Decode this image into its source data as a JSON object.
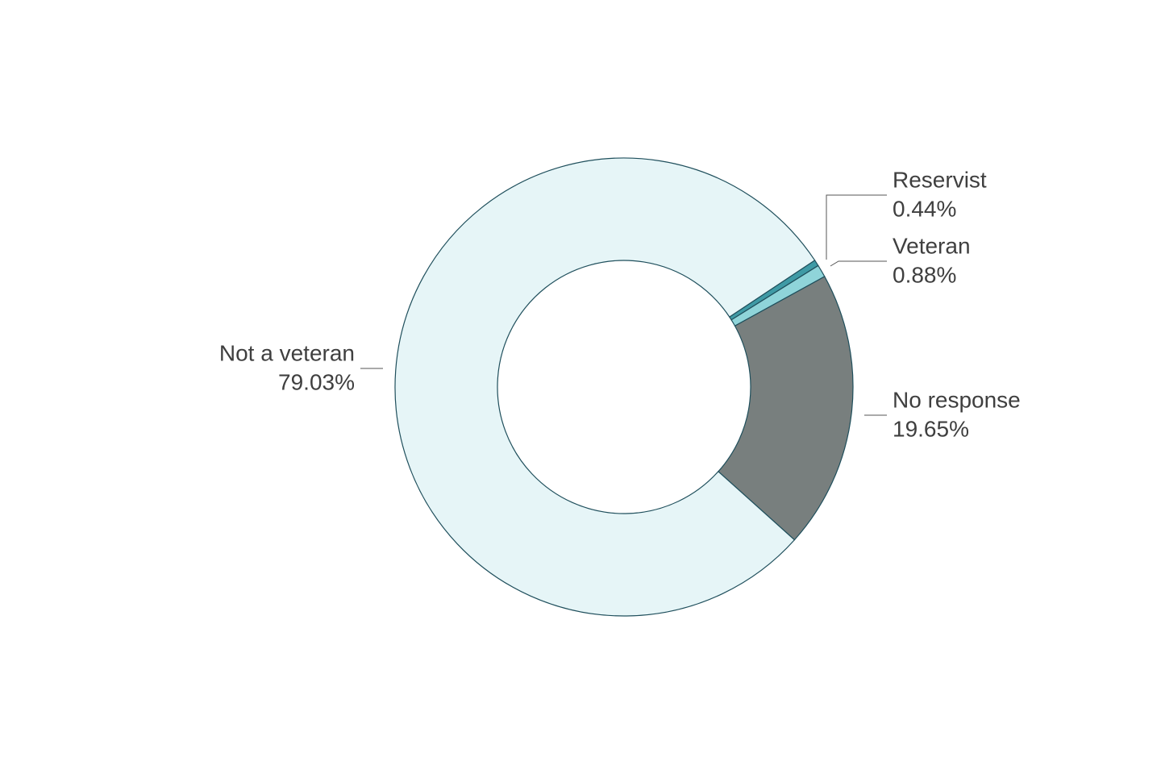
{
  "chart_data": {
    "type": "donut",
    "categories": [
      "Reservist",
      "Veteran",
      "No response",
      "Not a veteran"
    ],
    "values": [
      0.44,
      0.88,
      19.65,
      79.03
    ],
    "value_labels": [
      "0.44%",
      "0.88%",
      "19.65%",
      "79.03%"
    ],
    "colors": [
      "#3f9aa5",
      "#8fd4d9",
      "#787f7e",
      "#e6f5f7"
    ]
  }
}
